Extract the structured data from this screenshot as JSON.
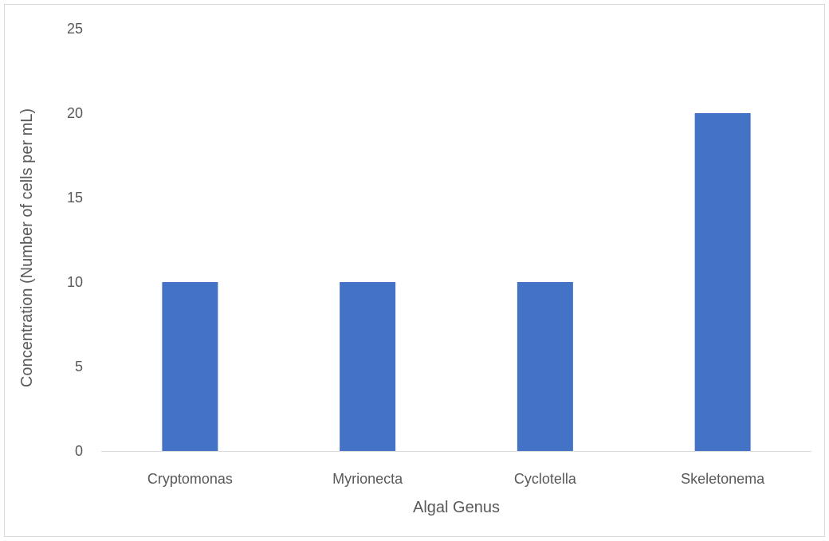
{
  "chart_data": {
    "type": "bar",
    "title": "",
    "categories": [
      "Cryptomonas",
      "Myrionecta",
      "Cyclotella",
      "Skeletonema"
    ],
    "values": [
      10,
      10,
      10,
      20
    ],
    "xlabel": "Algal Genus",
    "ylabel": "Concentration (Number of cells per mL)",
    "ylim": [
      0,
      25
    ],
    "yticks": [
      0,
      5,
      10,
      15,
      20,
      25
    ],
    "grid": false,
    "legend": "none",
    "bar_color": "#4472c4",
    "axis_color": "#d9d9d9"
  }
}
